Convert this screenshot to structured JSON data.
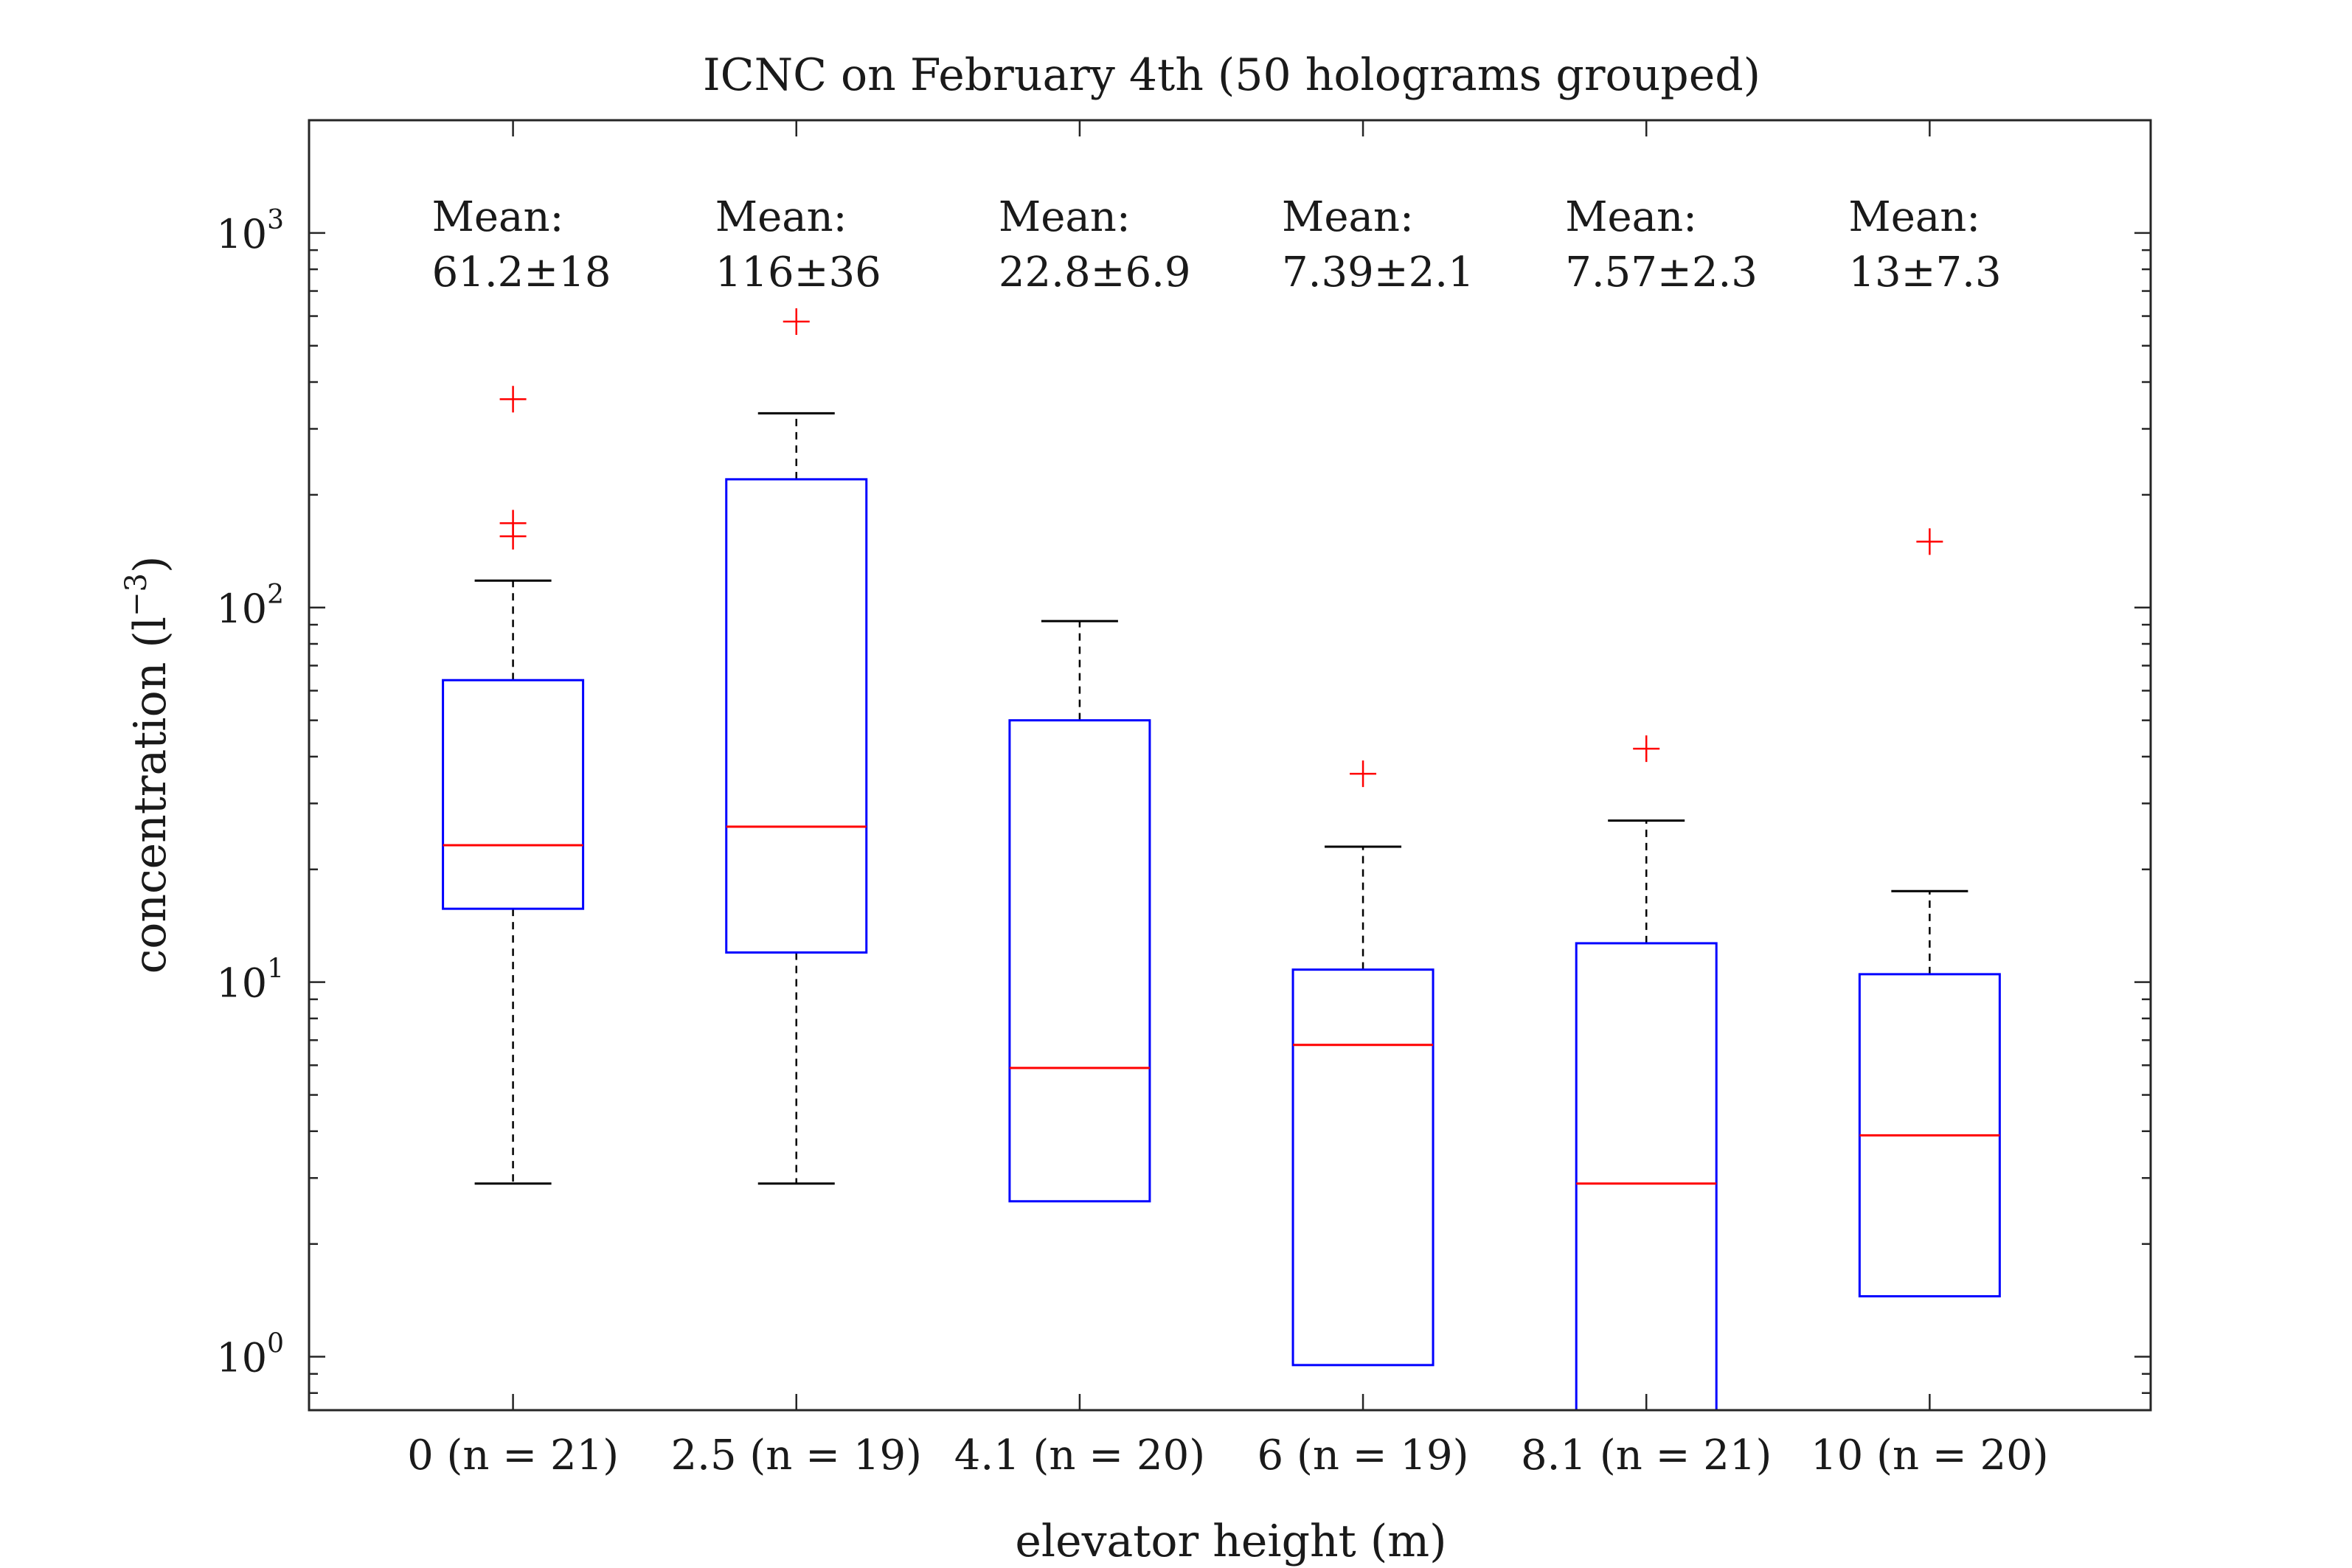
{
  "chart_data": {
    "type": "box",
    "title": "ICNC on February 4th (50 holograms grouped)",
    "xlabel": "elevator height (m)",
    "ylabel": "concentration (l",
    "ylabel_sup": "−3",
    "ylabel_close": ")",
    "yscale": "log",
    "ylim": [
      0.72,
      2000
    ],
    "grid": false,
    "y_ticks": [
      {
        "value": 1,
        "base": "10",
        "exp": "0"
      },
      {
        "value": 10,
        "base": "10",
        "exp": "1"
      },
      {
        "value": 100,
        "base": "10",
        "exp": "2"
      },
      {
        "value": 1000,
        "base": "10",
        "exp": "3"
      }
    ],
    "mean_label": "Mean:",
    "categories": [
      "0 (n = 21)",
      "2.5 (n = 19)",
      "4.1 (n = 20)",
      "6 (n = 19)",
      "8.1 (n = 21)",
      "10 (n = 20)"
    ],
    "boxes": [
      {
        "category": "0 (n = 21)",
        "x": 0,
        "whisker_low": 2.9,
        "q1": 15.7,
        "median": 23.2,
        "q3": 64,
        "whisker_high": 118,
        "outliers": [
          360,
          168,
          155
        ],
        "mean_text": "61.2±18"
      },
      {
        "category": "2.5 (n = 19)",
        "x": 2.5,
        "whisker_low": 2.9,
        "q1": 12,
        "median": 26,
        "q3": 220,
        "whisker_high": 330,
        "outliers": [
          580
        ],
        "mean_text": "116±36"
      },
      {
        "category": "4.1 (n = 20)",
        "x": 4.1,
        "whisker_low": 2.6,
        "q1": 2.6,
        "median": 5.9,
        "q3": 50,
        "whisker_high": 92,
        "outliers": [],
        "mean_text": "22.8±6.9"
      },
      {
        "category": "6 (n = 19)",
        "x": 6,
        "whisker_low": 0.95,
        "q1": 0.95,
        "median": 6.8,
        "q3": 10.8,
        "whisker_high": 23,
        "outliers": [
          36
        ],
        "mean_text": "7.39±2.1"
      },
      {
        "category": "8.1 (n = 21)",
        "x": 8.1,
        "whisker_low": 0.72,
        "q1": 0.72,
        "median": 2.9,
        "q3": 12.7,
        "whisker_high": 27,
        "outliers": [
          42
        ],
        "mean_text": "7.57±2.3"
      },
      {
        "category": "10 (n = 20)",
        "x": 10,
        "whisker_low": 1.45,
        "q1": 1.45,
        "median": 3.9,
        "q3": 10.5,
        "whisker_high": 17.5,
        "outliers": [
          150
        ],
        "mean_text": "13±7.3"
      }
    ],
    "colors": {
      "box": "#0000ff",
      "median": "#ff0000",
      "outlier": "#ff0000",
      "whisker": "#000000",
      "axis": "#262626"
    }
  }
}
